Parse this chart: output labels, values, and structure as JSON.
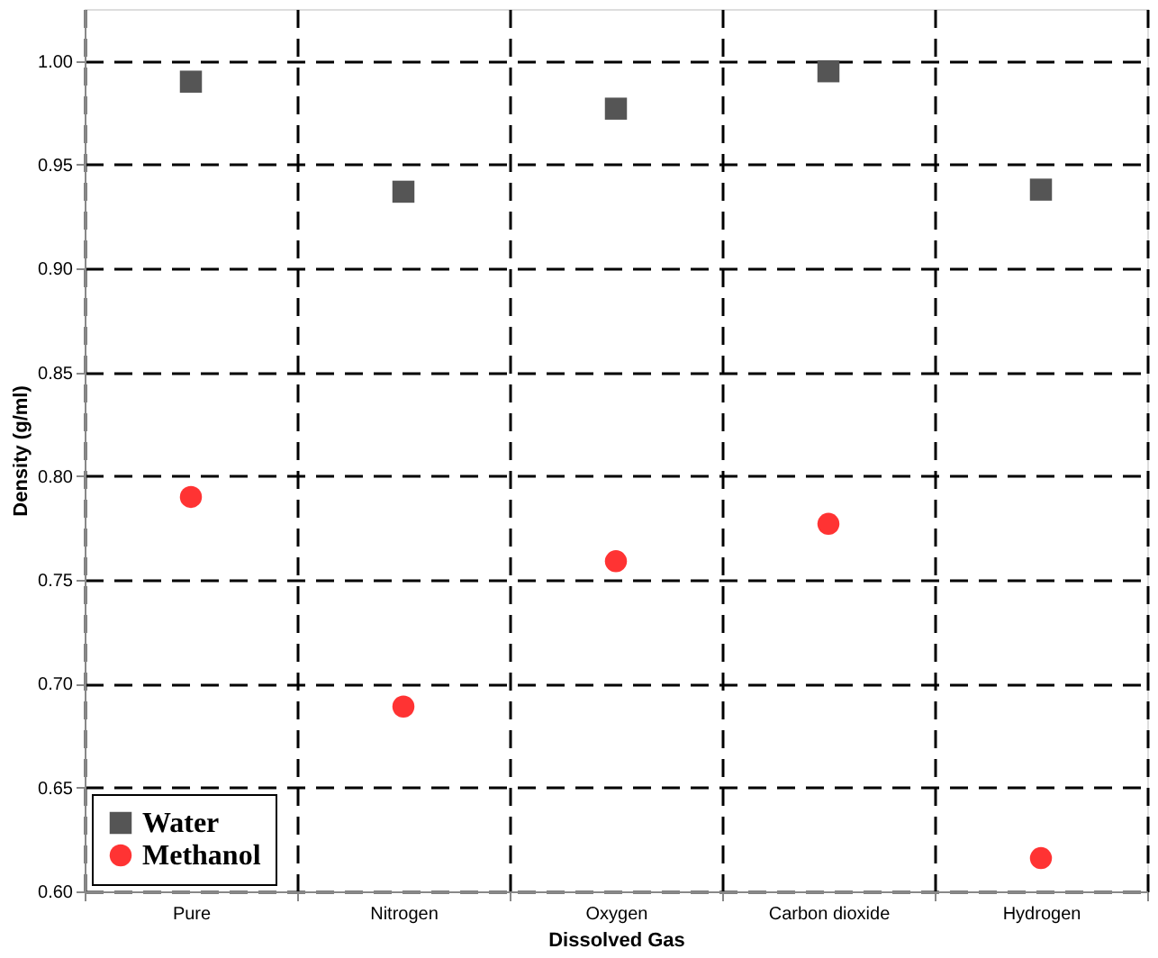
{
  "chart_data": {
    "type": "scatter",
    "xlabel": "Dissolved Gas",
    "ylabel": "Density (g/ml)",
    "categories": [
      "Pure",
      "Nitrogen",
      "Oxygen",
      "Carbon dioxide",
      "Hydrogen"
    ],
    "series": [
      {
        "name": "Water",
        "color": "#555555",
        "marker": "square",
        "values": [
          0.99,
          0.937,
          0.977,
          0.995,
          0.938
        ]
      },
      {
        "name": "Methanol",
        "color": "#ff3333",
        "marker": "circle",
        "values": [
          0.79,
          0.689,
          0.759,
          0.777,
          0.616
        ]
      }
    ],
    "ylim": [
      0.6,
      1.025
    ],
    "yticks": [
      {
        "value": 0.6,
        "label": "0.60"
      },
      {
        "value": 0.65,
        "label": "0.65"
      },
      {
        "value": 0.7,
        "label": "0.70"
      },
      {
        "value": 0.75,
        "label": "0.75"
      },
      {
        "value": 0.8,
        "label": "0.80"
      },
      {
        "value": 0.85,
        "label": "0.85"
      },
      {
        "value": 0.9,
        "label": "0.90"
      },
      {
        "value": 0.95,
        "label": "0.95"
      },
      {
        "value": 1.0,
        "label": "1.00"
      }
    ],
    "grid": true,
    "legend": "bottom left"
  }
}
